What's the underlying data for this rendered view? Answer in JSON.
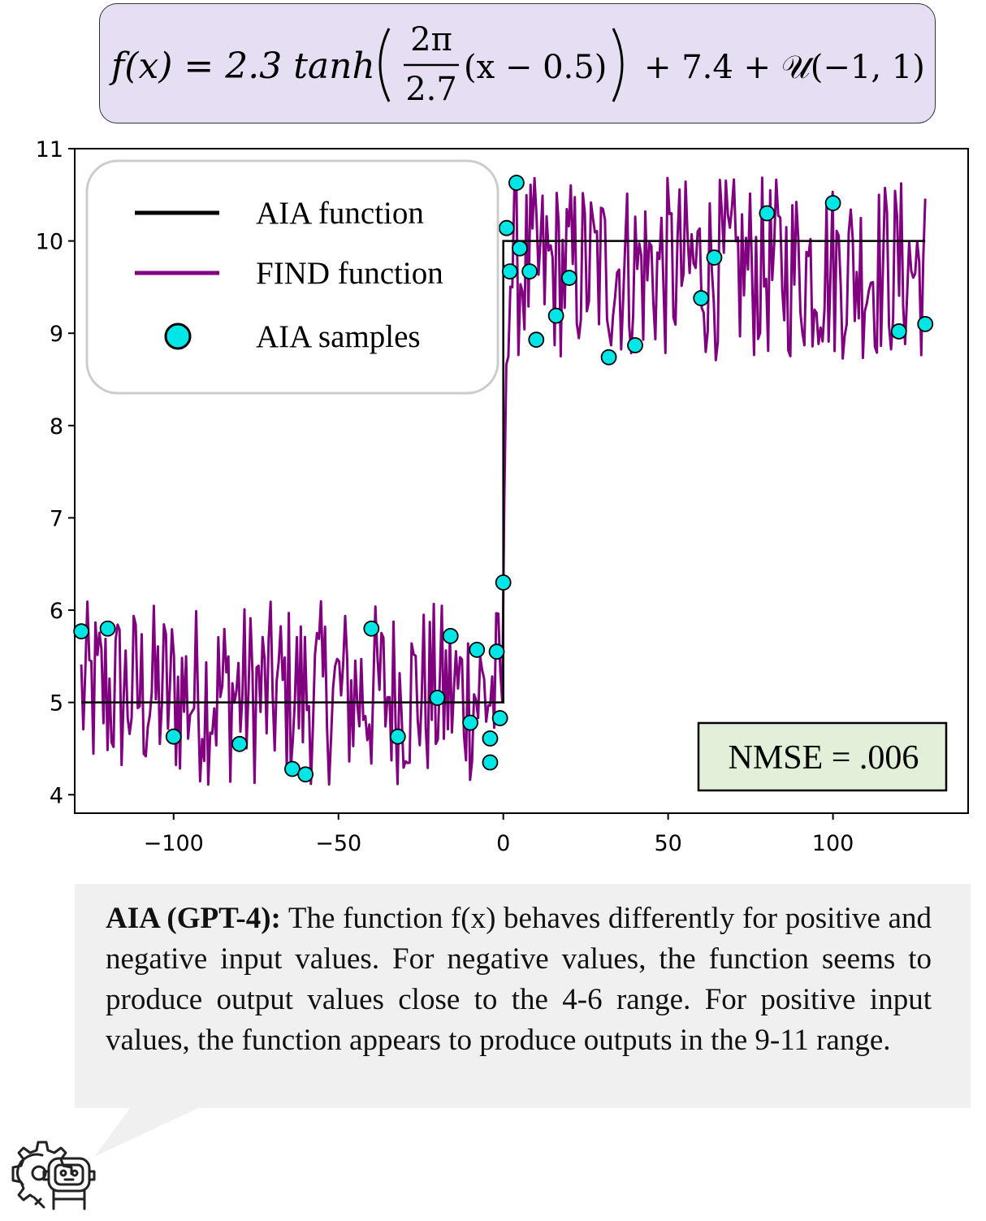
{
  "formula": {
    "lhs": "f(x) = 2.3 tanh",
    "frac_num": "2π",
    "frac_den": "2.7",
    "inner": "(x − 0.5)",
    "rhs": "+ 7.4 + 𝒰(−1, 1)",
    "bg_color": "#e6dff3"
  },
  "chart_data": {
    "type": "line",
    "xlim": [
      -130,
      141
    ],
    "ylim": [
      3.8,
      11
    ],
    "x_ticks": [
      -100,
      -50,
      0,
      50,
      100
    ],
    "x_tick_labels": [
      "−100",
      "−50",
      "0",
      "50",
      "100"
    ],
    "y_ticks": [
      4,
      5,
      6,
      7,
      8,
      9,
      10,
      11
    ],
    "y_tick_labels": [
      "4",
      "5",
      "6",
      "7",
      "8",
      "9",
      "10",
      "11"
    ],
    "grid": false,
    "legend_position": "top-left",
    "legend": [
      {
        "label": "AIA function",
        "color": "#000000",
        "kind": "line"
      },
      {
        "label": "FIND function",
        "color": "#800080",
        "kind": "line"
      },
      {
        "label": "AIA samples",
        "color": "#00e5e5",
        "kind": "marker"
      }
    ],
    "aia_function": {
      "name": "AIA function",
      "color": "#000000",
      "x": [
        -128,
        0,
        0,
        128
      ],
      "y": [
        5,
        5,
        10,
        10
      ]
    },
    "find_function": {
      "name": "FIND function",
      "color": "#800080",
      "formula_params": {
        "amplitude": 2.3,
        "period": 2.7,
        "shift": 0.5,
        "offset": 7.4,
        "noise_min": -1,
        "noise_max": 1
      },
      "x_range": [
        -128,
        128
      ],
      "num_points": 420
    },
    "aia_samples": {
      "name": "AIA samples",
      "color": "#00e5e5",
      "points": [
        [
          -128,
          5.77
        ],
        [
          -120,
          5.8
        ],
        [
          -100,
          4.63
        ],
        [
          -80,
          4.55
        ],
        [
          -64,
          4.28
        ],
        [
          -60,
          4.22
        ],
        [
          -40,
          5.8
        ],
        [
          -32,
          4.63
        ],
        [
          -20,
          5.05
        ],
        [
          -16,
          5.72
        ],
        [
          -10,
          4.78
        ],
        [
          -8,
          5.57
        ],
        [
          -4,
          4.35
        ],
        [
          -4,
          4.61
        ],
        [
          -2,
          5.55
        ],
        [
          -1,
          4.83
        ],
        [
          0,
          6.3
        ],
        [
          1,
          10.14
        ],
        [
          2,
          9.67
        ],
        [
          4,
          10.63
        ],
        [
          5,
          9.92
        ],
        [
          8,
          9.67
        ],
        [
          10,
          8.93
        ],
        [
          16,
          9.19
        ],
        [
          20,
          9.6
        ],
        [
          32,
          8.74
        ],
        [
          40,
          8.87
        ],
        [
          60,
          9.38
        ],
        [
          64,
          9.82
        ],
        [
          80,
          10.3
        ],
        [
          100,
          10.41
        ],
        [
          120,
          9.02
        ],
        [
          128,
          9.1
        ]
      ]
    },
    "annotation": {
      "text": "NMSE = .006",
      "bg_color": "#e2f0d9"
    }
  },
  "caption": {
    "speaker": "AIA (GPT-4):",
    "text": "The function f(x) behaves differently for positive and negative input values. For negative values, the function seems to produce output values close to the 4-6 range. For positive input values, the function appears to produce outputs in the 9-11 range.",
    "bg_color": "#f0f0f0"
  },
  "icons": {
    "assistant": "robot-gear-icon"
  }
}
